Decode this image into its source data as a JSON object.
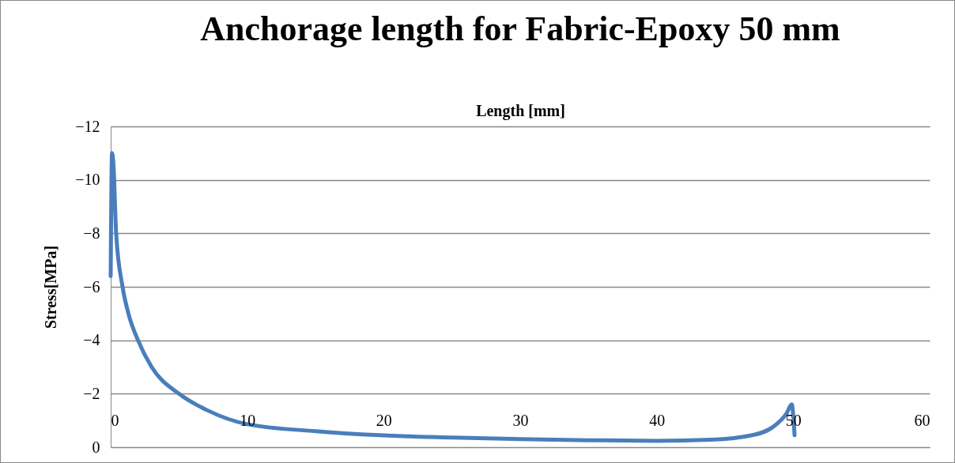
{
  "chart_data": {
    "type": "line",
    "title": "Anchorage length for Fabric-Epoxy 50 mm",
    "xlabel": "Length [mm]",
    "ylabel": "Stress[MPa]",
    "x": [
      0,
      0.1,
      0.2,
      0.4,
      0.87,
      1.3,
      2,
      3,
      5,
      7,
      10,
      15,
      20,
      25,
      30,
      35,
      40,
      44,
      47,
      48.5,
      49.5,
      49.9,
      50.0,
      50.1
    ],
    "series": [
      {
        "color": "#4a7ebb",
        "values": [
          -6.4,
          -11,
          -10.6,
          -8,
          -6,
          -5,
          -4,
          -3,
          -2,
          -1.4,
          -0.86,
          -0.6,
          -0.44,
          -0.36,
          -0.3,
          -0.26,
          -0.24,
          -0.28,
          -0.45,
          -0.75,
          -1.25,
          -1.6,
          -1.2,
          -0.45
        ]
      }
    ],
    "xlim": [
      0,
      60
    ],
    "xticks": [
      0,
      10,
      20,
      30,
      40,
      50,
      60
    ],
    "ylim": [
      0,
      -12
    ],
    "yticks": [
      0,
      -2,
      -4,
      -6,
      -8,
      -10,
      -12
    ],
    "grid": "y",
    "legend": false,
    "marker": "none",
    "line_style": "solid"
  }
}
